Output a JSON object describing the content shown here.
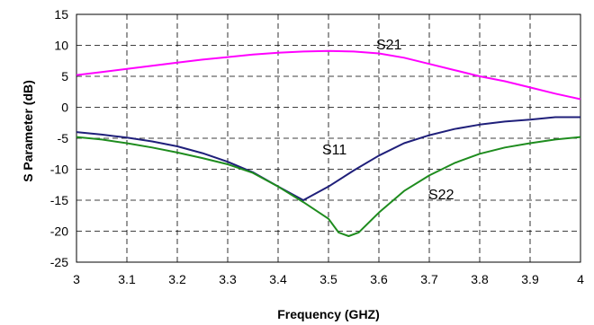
{
  "chart_data": {
    "type": "line",
    "xlabel": "Frequency (GHZ)",
    "ylabel": "S Parameter (dB)",
    "xlim": [
      3,
      4
    ],
    "ylim": [
      -25,
      15
    ],
    "xticks": [
      "3",
      "3.1",
      "3.2",
      "3.3",
      "3.4",
      "3.5",
      "3.6",
      "3.7",
      "3.8",
      "3.9",
      "4"
    ],
    "yticks": [
      "15",
      "10",
      "5",
      "0",
      "-5",
      "-10",
      "-15",
      "-20",
      "-25"
    ],
    "grid": true,
    "series": [
      {
        "name": "S21",
        "color": "#ff00ff",
        "x": [
          3.0,
          3.05,
          3.1,
          3.15,
          3.2,
          3.25,
          3.3,
          3.35,
          3.4,
          3.45,
          3.5,
          3.55,
          3.6,
          3.65,
          3.7,
          3.75,
          3.8,
          3.85,
          3.9,
          3.95,
          4.0
        ],
        "y": [
          5.2,
          5.7,
          6.2,
          6.7,
          7.2,
          7.7,
          8.1,
          8.5,
          8.8,
          9.0,
          9.1,
          9.0,
          8.7,
          8.0,
          7.0,
          6.0,
          5.0,
          4.2,
          3.2,
          2.2,
          1.3
        ]
      },
      {
        "name": "S11",
        "color": "#1f1f7a",
        "x": [
          3.0,
          3.05,
          3.1,
          3.15,
          3.2,
          3.25,
          3.3,
          3.35,
          3.4,
          3.45,
          3.5,
          3.55,
          3.6,
          3.65,
          3.7,
          3.75,
          3.8,
          3.85,
          3.9,
          3.95,
          4.0
        ],
        "y": [
          -4.0,
          -4.4,
          -4.9,
          -5.5,
          -6.3,
          -7.4,
          -8.8,
          -10.5,
          -12.8,
          -15.0,
          -12.8,
          -10.2,
          -7.8,
          -5.8,
          -4.5,
          -3.5,
          -2.8,
          -2.3,
          -2.0,
          -1.6,
          -1.6
        ]
      },
      {
        "name": "S22",
        "color": "#1e8c1e",
        "x": [
          3.0,
          3.05,
          3.1,
          3.15,
          3.2,
          3.25,
          3.3,
          3.35,
          3.4,
          3.45,
          3.5,
          3.52,
          3.54,
          3.56,
          3.6,
          3.65,
          3.7,
          3.75,
          3.8,
          3.85,
          3.9,
          3.95,
          4.0
        ],
        "y": [
          -4.8,
          -5.2,
          -5.8,
          -6.5,
          -7.3,
          -8.2,
          -9.2,
          -10.6,
          -12.8,
          -15.3,
          -18.0,
          -20.2,
          -20.8,
          -20.2,
          -17.0,
          -13.5,
          -11.0,
          -9.0,
          -7.5,
          -6.5,
          -5.8,
          -5.2,
          -4.8
        ]
      }
    ]
  }
}
